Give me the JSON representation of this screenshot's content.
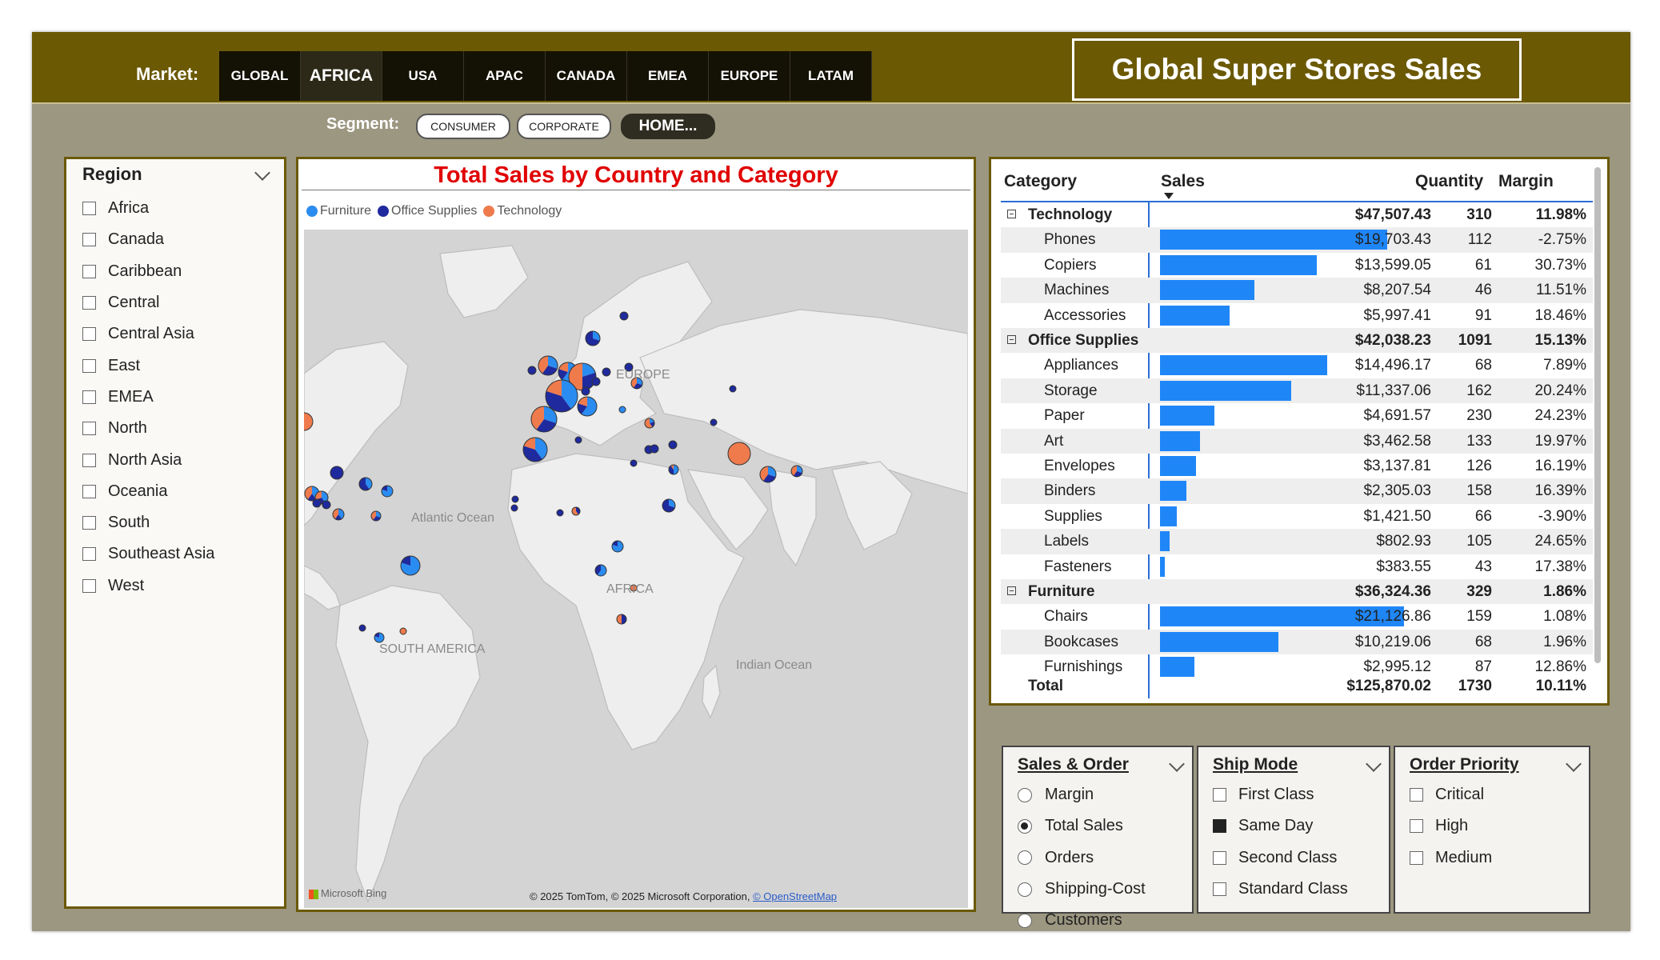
{
  "header": {
    "market_label": "Market:",
    "markets": [
      "GLOBAL",
      "AFRICA",
      "USA",
      "APAC",
      "CANADA",
      "EMEA",
      "EUROPE",
      "LATAM"
    ],
    "active_market": "AFRICA",
    "title": "Global Super Stores Sales",
    "segment_label": "Segment:",
    "segments": [
      "CONSUMER",
      "CORPORATE",
      "HOME..."
    ]
  },
  "region_slicer": {
    "title": "Region",
    "items": [
      "Africa",
      "Canada",
      "Caribbean",
      "Central",
      "Central Asia",
      "East",
      "EMEA",
      "North",
      "North Asia",
      "Oceania",
      "South",
      "Southeast Asia",
      "West"
    ]
  },
  "map": {
    "title": "Total Sales by Country and Category",
    "legend": [
      {
        "name": "Furniture",
        "color": "#2a8cf0"
      },
      {
        "name": "Office Supplies",
        "color": "#1f2a9e"
      },
      {
        "name": "Technology",
        "color": "#ef7b4d"
      }
    ],
    "labels": {
      "europe": "EUROPE",
      "atlantic": "Atlantic Ocean",
      "africa": "AFRICA",
      "south_america": "SOUTH AMERICA",
      "indian": "Indian Ocean"
    },
    "bing": "Microsoft Bing",
    "copyright": "© 2025 TomTom, © 2025 Microsoft Corporation,",
    "osm": "© OpenStreetMap"
  },
  "table": {
    "headers": {
      "category": "Category",
      "sales": "Sales",
      "quantity": "Quantity",
      "margin": "Margin"
    },
    "groups": [
      {
        "name": "Technology",
        "sales": "$47,507.43",
        "quantity": "310",
        "margin": "11.98%",
        "rows": [
          {
            "name": "Phones",
            "sales": "$19,703.43",
            "quantity": "112",
            "margin": "-2.75%",
            "value": 19703.43
          },
          {
            "name": "Copiers",
            "sales": "$13,599.05",
            "quantity": "61",
            "margin": "30.73%",
            "value": 13599.05
          },
          {
            "name": "Machines",
            "sales": "$8,207.54",
            "quantity": "46",
            "margin": "11.51%",
            "value": 8207.54
          },
          {
            "name": "Accessories",
            "sales": "$5,997.41",
            "quantity": "91",
            "margin": "18.46%",
            "value": 5997.41
          }
        ]
      },
      {
        "name": "Office Supplies",
        "sales": "$42,038.23",
        "quantity": "1091",
        "margin": "15.13%",
        "rows": [
          {
            "name": "Appliances",
            "sales": "$14,496.17",
            "quantity": "68",
            "margin": "7.89%",
            "value": 14496.17
          },
          {
            "name": "Storage",
            "sales": "$11,337.06",
            "quantity": "162",
            "margin": "20.24%",
            "value": 11337.06
          },
          {
            "name": "Paper",
            "sales": "$4,691.57",
            "quantity": "230",
            "margin": "24.23%",
            "value": 4691.57
          },
          {
            "name": "Art",
            "sales": "$3,462.58",
            "quantity": "133",
            "margin": "19.97%",
            "value": 3462.58
          },
          {
            "name": "Envelopes",
            "sales": "$3,137.81",
            "quantity": "126",
            "margin": "16.19%",
            "value": 3137.81
          },
          {
            "name": "Binders",
            "sales": "$2,305.03",
            "quantity": "158",
            "margin": "16.39%",
            "value": 2305.03
          },
          {
            "name": "Supplies",
            "sales": "$1,421.50",
            "quantity": "66",
            "margin": "-3.90%",
            "value": 1421.5
          },
          {
            "name": "Labels",
            "sales": "$802.93",
            "quantity": "105",
            "margin": "24.65%",
            "value": 802.93
          },
          {
            "name": "Fasteners",
            "sales": "$383.55",
            "quantity": "43",
            "margin": "17.38%",
            "value": 383.55
          }
        ]
      },
      {
        "name": "Furniture",
        "sales": "$36,324.36",
        "quantity": "329",
        "margin": "1.86%",
        "rows": [
          {
            "name": "Chairs",
            "sales": "$21,126.86",
            "quantity": "159",
            "margin": "1.08%",
            "value": 21126.86
          },
          {
            "name": "Bookcases",
            "sales": "$10,219.06",
            "quantity": "68",
            "margin": "1.96%",
            "value": 10219.06
          },
          {
            "name": "Furnishings",
            "sales": "$2,995.12",
            "quantity": "87",
            "margin": "12.86%",
            "value": 2995.12
          }
        ]
      }
    ],
    "total": {
      "name": "Total",
      "sales": "$125,870.02",
      "quantity": "1730",
      "margin": "10.11%"
    }
  },
  "sales_order_slicer": {
    "title": "Sales & Order",
    "options": [
      "Margin",
      "Total Sales",
      "Orders",
      "Shipping-Cost",
      "Customers"
    ],
    "selected": "Total Sales"
  },
  "ship_mode_slicer": {
    "title": "Ship Mode",
    "options": [
      "First Class",
      "Same Day",
      "Second Class",
      "Standard Class"
    ],
    "selected": "Same Day"
  },
  "order_priority_slicer": {
    "title": "Order Priority",
    "options": [
      "Critical",
      "High",
      "Medium"
    ]
  }
}
